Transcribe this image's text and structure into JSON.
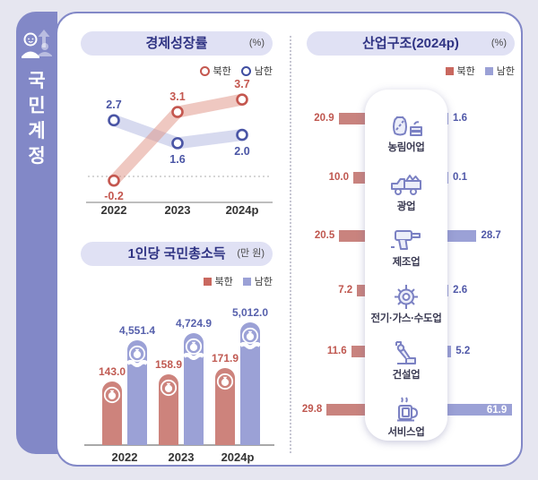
{
  "sidebar": {
    "chars": [
      "국",
      "민",
      "계",
      "정"
    ],
    "title": "국민계정",
    "icon": "person-growth-icon"
  },
  "colors": {
    "accent_purple": "#8288c7",
    "north_line": "#c4574f",
    "south_line": "#4a55a5",
    "north_bar": "#cd837c",
    "south_bar": "#9ba1d6",
    "north_label": "#c05a52",
    "south_label": "#5660ac",
    "title_text": "#2f3383",
    "pill_bg": "#e0e1f4"
  },
  "chart_data": [
    {
      "type": "line",
      "title": "경제성장률",
      "unit": "(%)",
      "categories": [
        "2022",
        "2023",
        "2024p"
      ],
      "series": [
        {
          "name": "북한",
          "values": [
            -0.2,
            3.1,
            3.7
          ],
          "color": "#c4574f"
        },
        {
          "name": "남한",
          "values": [
            2.7,
            1.6,
            2.0
          ],
          "color": "#4a55a5"
        }
      ],
      "legend_position": "top-right",
      "zero_line": "dotted",
      "ylim": [
        -1,
        4.5
      ]
    },
    {
      "type": "bar",
      "title": "1인당 국민총소득",
      "unit": "(만 원)",
      "categories": [
        "2022",
        "2023",
        "2024p"
      ],
      "series": [
        {
          "name": "북한",
          "values": [
            143.0,
            158.9,
            171.9
          ],
          "labels": [
            "143.0",
            "158.9",
            "171.9"
          ],
          "color": "#cd837c"
        },
        {
          "name": "남한",
          "values": [
            4551.4,
            4724.9,
            5012.0
          ],
          "labels": [
            "4,551.4",
            "4,724.9",
            "5,012.0"
          ],
          "color": "#9ba1d6",
          "axis_break": true
        }
      ],
      "legend_position": "top-right",
      "bar_icon": "money-pouch-icon"
    },
    {
      "type": "bar-horizontal-paired",
      "title": "산업구조(2024p)",
      "unit": "(%)",
      "categories": [
        "농림어업",
        "광업",
        "제조업",
        "전기·가스·수도업",
        "건설업",
        "서비스업"
      ],
      "category_icons": [
        "grain-sack-icon",
        "mining-truck-icon",
        "drill-icon",
        "gear-icon",
        "construction-arm-icon",
        "mug-icon"
      ],
      "series": [
        {
          "name": "북한",
          "values": [
            20.9,
            10.0,
            20.5,
            7.2,
            11.6,
            29.8
          ],
          "labels": [
            "20.9",
            "10.0",
            "20.5",
            "7.2",
            "11.6",
            "29.8"
          ],
          "color": "#c9837e",
          "side": "left"
        },
        {
          "name": "남한",
          "values": [
            1.6,
            0.1,
            28.7,
            2.6,
            5.2,
            61.9
          ],
          "labels": [
            "1.6",
            "0.1",
            "28.7",
            "2.6",
            "5.2",
            "61.9"
          ],
          "color": "#9ba1d6",
          "side": "right"
        }
      ],
      "legend_position": "top-right"
    }
  ]
}
